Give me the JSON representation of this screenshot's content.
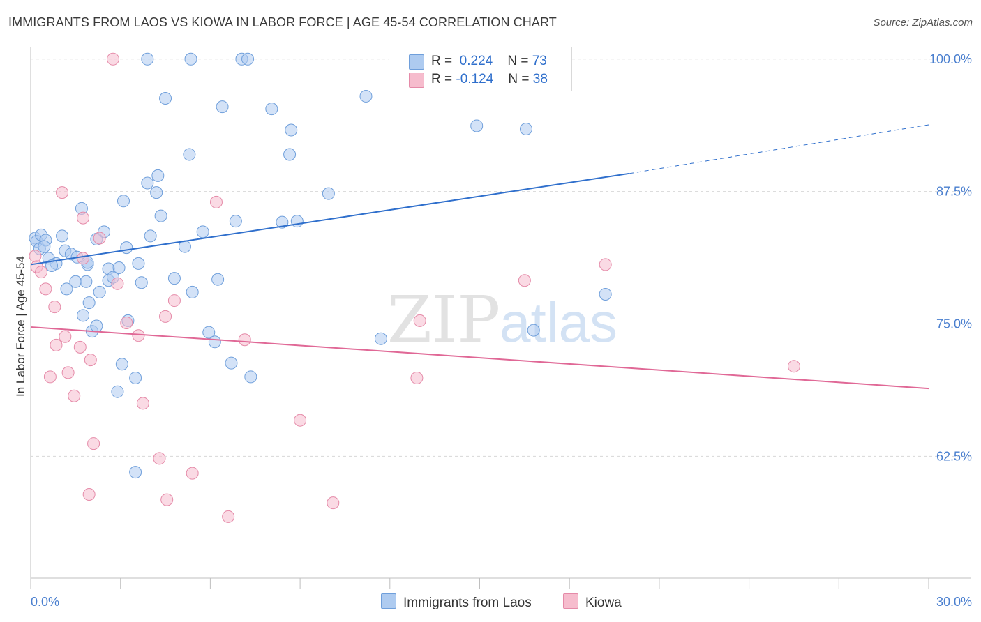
{
  "title": "IMMIGRANTS FROM LAOS VS KIOWA IN LABOR FORCE | AGE 45-54 CORRELATION CHART",
  "source": "Source: ZipAtlas.com",
  "watermark": {
    "zip": "ZIP",
    "atlas": "atlas"
  },
  "legend": {
    "r_label": "R =",
    "n_label": "N =",
    "rows": [
      {
        "r": "0.224",
        "n": "73"
      },
      {
        "r": "-0.124",
        "n": "38"
      }
    ]
  },
  "colors": {
    "blue_fill": "#aecbf0",
    "blue_stroke": "#6f9fdb",
    "blue_line": "#2f6fcc",
    "pink_fill": "#f6bccd",
    "pink_stroke": "#e58aa8",
    "pink_line": "#e06896",
    "tick_label": "#4a7fcf",
    "grid": "#d8d8d8"
  },
  "chart_data": {
    "type": "scatter",
    "title": "IMMIGRANTS FROM LAOS VS KIOWA IN LABOR FORCE | AGE 45-54 CORRELATION CHART",
    "xlabel": "",
    "ylabel": "In Labor Force | Age 45-54",
    "xlim": [
      0,
      30
    ],
    "ylim": [
      51,
      101.5
    ],
    "x_tick_labels": [
      "0.0%",
      "30.0%"
    ],
    "y_ticks": [
      62.5,
      75.0,
      87.5,
      100.0
    ],
    "y_tick_labels": [
      "62.5%",
      "75.0%",
      "87.5%",
      "100.0%"
    ],
    "grid": "horizontal dashed",
    "legend_position": "top-center",
    "series": [
      {
        "name": "Immigrants from Laos",
        "r": 0.224,
        "n": 73,
        "trend": {
          "x0": 0,
          "y0": 80.6,
          "x1": 20,
          "y1": 89.2,
          "dashed_to": [
            30,
            93.8
          ]
        },
        "points": [
          [
            0.15,
            83.1
          ],
          [
            0.2,
            82.8
          ],
          [
            0.35,
            83.4
          ],
          [
            0.3,
            82.1
          ],
          [
            0.5,
            82.9
          ],
          [
            0.45,
            82.3
          ],
          [
            0.6,
            81.2
          ],
          [
            0.85,
            80.7
          ],
          [
            1.05,
            83.3
          ],
          [
            1.15,
            81.9
          ],
          [
            1.35,
            81.6
          ],
          [
            1.55,
            81.3
          ],
          [
            1.5,
            79.0
          ],
          [
            1.2,
            78.3
          ],
          [
            1.7,
            85.9
          ],
          [
            1.9,
            80.6
          ],
          [
            1.85,
            79.0
          ],
          [
            1.95,
            77.0
          ],
          [
            1.75,
            75.8
          ],
          [
            2.05,
            74.3
          ],
          [
            2.2,
            74.8
          ],
          [
            2.3,
            78.0
          ],
          [
            2.45,
            83.7
          ],
          [
            2.2,
            83.0
          ],
          [
            2.6,
            80.2
          ],
          [
            2.6,
            79.1
          ],
          [
            2.75,
            79.4
          ],
          [
            2.95,
            80.3
          ],
          [
            3.1,
            86.6
          ],
          [
            3.2,
            82.2
          ],
          [
            3.25,
            75.3
          ],
          [
            3.05,
            71.2
          ],
          [
            2.9,
            68.6
          ],
          [
            3.5,
            69.9
          ],
          [
            3.6,
            80.7
          ],
          [
            3.7,
            78.9
          ],
          [
            4.0,
            83.3
          ],
          [
            3.9,
            88.3
          ],
          [
            4.25,
            89.0
          ],
          [
            4.2,
            87.4
          ],
          [
            4.35,
            85.2
          ],
          [
            4.5,
            96.3
          ],
          [
            4.8,
            79.3
          ],
          [
            5.15,
            82.3
          ],
          [
            5.3,
            91.0
          ],
          [
            5.4,
            78.0
          ],
          [
            5.75,
            83.7
          ],
          [
            5.95,
            74.2
          ],
          [
            6.15,
            73.3
          ],
          [
            6.25,
            79.2
          ],
          [
            6.4,
            95.5
          ],
          [
            6.7,
            71.3
          ],
          [
            6.85,
            84.7
          ],
          [
            7.35,
            70.0
          ],
          [
            8.05,
            95.3
          ],
          [
            8.4,
            84.6
          ],
          [
            8.65,
            91.0
          ],
          [
            8.7,
            93.3
          ],
          [
            8.9,
            84.7
          ],
          [
            9.95,
            87.3
          ],
          [
            11.2,
            96.5
          ],
          [
            11.7,
            73.6
          ],
          [
            14.9,
            93.7
          ],
          [
            16.55,
            93.4
          ],
          [
            16.8,
            74.4
          ],
          [
            19.2,
            77.8
          ],
          [
            3.9,
            100.0
          ],
          [
            5.35,
            100.0
          ],
          [
            7.05,
            100.0
          ],
          [
            7.25,
            100.0
          ],
          [
            3.5,
            61.0
          ],
          [
            1.9,
            80.8
          ],
          [
            0.7,
            80.5
          ]
        ]
      },
      {
        "name": "Kiowa",
        "r": -0.124,
        "n": 38,
        "trend": {
          "x0": 0,
          "y0": 74.7,
          "x1": 30,
          "y1": 68.9
        },
        "points": [
          [
            0.15,
            81.4
          ],
          [
            0.2,
            80.4
          ],
          [
            0.35,
            79.9
          ],
          [
            0.5,
            78.3
          ],
          [
            0.8,
            76.6
          ],
          [
            0.85,
            73.0
          ],
          [
            1.15,
            73.8
          ],
          [
            1.25,
            70.4
          ],
          [
            0.65,
            70.0
          ],
          [
            1.45,
            68.2
          ],
          [
            1.65,
            72.8
          ],
          [
            1.75,
            81.2
          ],
          [
            1.75,
            85.0
          ],
          [
            1.05,
            87.4
          ],
          [
            2.0,
            71.6
          ],
          [
            2.3,
            83.1
          ],
          [
            2.9,
            78.8
          ],
          [
            3.2,
            75.1
          ],
          [
            2.1,
            63.7
          ],
          [
            1.95,
            58.9
          ],
          [
            3.6,
            73.9
          ],
          [
            3.75,
            67.5
          ],
          [
            4.3,
            62.3
          ],
          [
            4.55,
            58.4
          ],
          [
            4.5,
            75.7
          ],
          [
            4.8,
            77.2
          ],
          [
            5.4,
            60.9
          ],
          [
            6.2,
            86.5
          ],
          [
            6.6,
            56.8
          ],
          [
            7.15,
            73.5
          ],
          [
            9.0,
            65.9
          ],
          [
            10.1,
            58.1
          ],
          [
            12.9,
            69.9
          ],
          [
            13.0,
            75.3
          ],
          [
            16.5,
            79.1
          ],
          [
            19.2,
            80.6
          ],
          [
            25.5,
            71.0
          ],
          [
            2.75,
            100.0
          ]
        ]
      }
    ]
  }
}
